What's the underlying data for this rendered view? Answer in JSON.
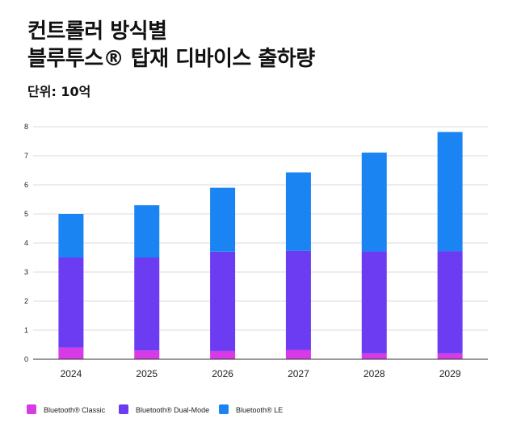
{
  "header": {
    "title_line1": "컨트롤러 방식별",
    "title_line2": "블루투스® 탑재 디바이스 출하량",
    "unit": "단위: 10억"
  },
  "colors": {
    "classic": "#d63be6",
    "dual_mode": "#6b3cf2",
    "le": "#1a84f2",
    "grid": "#cfcfcf",
    "axis": "#333333"
  },
  "chart_data": {
    "type": "bar",
    "stacked": true,
    "title": "컨트롤러 방식별 블루투스® 탑재 디바이스 출하량",
    "ylabel": "단위: 10억",
    "xlabel": "",
    "categories": [
      "2024",
      "2025",
      "2026",
      "2027",
      "2028",
      "2029"
    ],
    "ylim": [
      0,
      8
    ],
    "yticks": [
      "0",
      "1",
      "2",
      "3",
      "4",
      "5",
      "6",
      "7",
      "8"
    ],
    "grid": true,
    "legend_position": "bottom-left",
    "series": [
      {
        "name": "Bluetooth® Classic",
        "values": [
          0.4,
          0.3,
          0.28,
          0.32,
          0.2,
          0.2
        ]
      },
      {
        "name": "Bluetooth® Dual-Mode",
        "values": [
          3.1,
          3.2,
          3.42,
          3.41,
          3.51,
          3.52
        ]
      },
      {
        "name": "Bluetooth® LE",
        "values": [
          1.5,
          1.8,
          2.2,
          2.7,
          3.4,
          4.1
        ]
      }
    ]
  }
}
